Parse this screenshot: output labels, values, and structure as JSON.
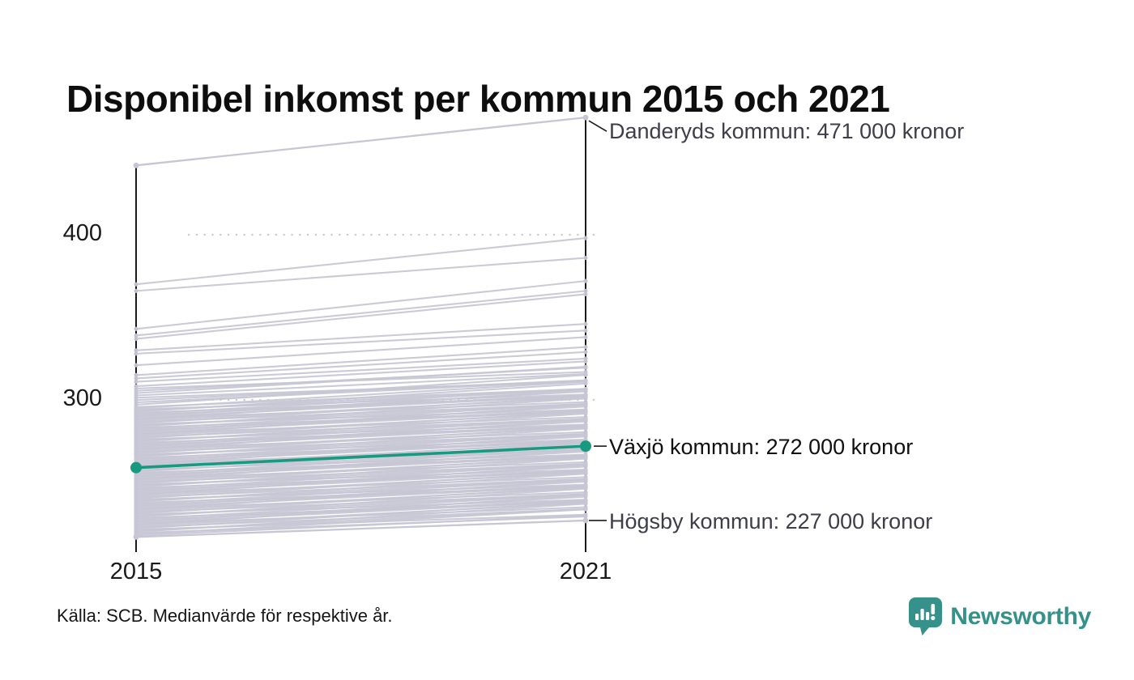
{
  "title": "Disponibel inkomst per kommun 2015 och 2021",
  "source_note": "Källa: SCB. Medianvärde för respektive år.",
  "branding": {
    "name": "Newsworthy",
    "logo_icon": "chart-speech-bubble-icon",
    "logo_color": "#35918a"
  },
  "colors": {
    "highlight": "#189a80",
    "line_gray": "#c7c6d4",
    "axis": "#1a1a1a",
    "gridline": "#cccccf",
    "leader": "#1a1a1a"
  },
  "chart_data": {
    "type": "line",
    "subtype": "slopegraph",
    "title": "Disponibel inkomst per kommun 2015 och 2021",
    "x": [
      "2015",
      "2021"
    ],
    "yticks": [
      300,
      400
    ],
    "ylim": [
      210,
      480
    ],
    "y_unit": "tusen kronor (medianvärde per kommun)",
    "grid": "dotted horizontal lines at yticks",
    "legend": "none",
    "series": [
      {
        "name": "Danderyds kommun",
        "values": [
          442,
          471
        ],
        "annotation": "Danderyds kommun: 471 000 kronor",
        "highlight": false
      },
      {
        "name": "Växjö kommun",
        "values": [
          259,
          272
        ],
        "annotation": "Växjö kommun: 272 000 kronor",
        "highlight": true
      },
      {
        "name": "Högsby kommun",
        "values": [
          217,
          227
        ],
        "annotation": "Högsby kommun: 227 000 kronor",
        "highlight": false
      }
    ],
    "background_outliers": [
      [
        370,
        398
      ],
      [
        366,
        386
      ],
      [
        343,
        372
      ],
      [
        339,
        366
      ],
      [
        337,
        364
      ],
      [
        330,
        346
      ],
      [
        328,
        342
      ],
      [
        321,
        338
      ],
      [
        315,
        332
      ],
      [
        313,
        329
      ],
      [
        311,
        325
      ]
    ],
    "background_lines": [
      [
        218,
        230
      ],
      [
        218.7,
        233.7
      ],
      [
        219.4,
        229.4
      ],
      [
        220.1,
        237.1
      ],
      [
        220.8,
        233.8
      ],
      [
        221.5,
        230.5
      ],
      [
        222.2,
        238.2
      ],
      [
        222.9,
        233.9
      ],
      [
        223.6,
        237.6
      ],
      [
        224.3,
        242.3
      ],
      [
        225,
        235
      ],
      [
        225.7,
        238.7
      ],
      [
        226.4,
        241.4
      ],
      [
        227.1,
        239.1
      ],
      [
        227.8,
        242.8
      ],
      [
        228.5,
        238.5
      ],
      [
        229.2,
        246.2
      ],
      [
        229.9,
        242.9
      ],
      [
        230.6,
        239.6
      ],
      [
        231.3,
        247.3
      ],
      [
        232,
        243
      ],
      [
        232.7,
        246.7
      ],
      [
        233.4,
        251.4
      ],
      [
        234.1,
        244.1
      ],
      [
        234.8,
        247.8
      ],
      [
        235.5,
        250.5
      ],
      [
        236.2,
        248.2
      ],
      [
        236.9,
        251.9
      ],
      [
        237.6,
        247.6
      ],
      [
        238.3,
        255.3
      ],
      [
        239,
        252
      ],
      [
        239.7,
        248.7
      ],
      [
        240.4,
        256.4
      ],
      [
        241.1,
        252.1
      ],
      [
        241.8,
        255.8
      ],
      [
        242.5,
        260.5
      ],
      [
        243.2,
        253.2
      ],
      [
        243.9,
        256.9
      ],
      [
        244.6,
        259.6
      ],
      [
        245.3,
        257.3
      ],
      [
        246,
        261
      ],
      [
        246.7,
        256.7
      ],
      [
        247.4,
        264.4
      ],
      [
        248.1,
        261.1
      ],
      [
        248.8,
        257.8
      ],
      [
        249.5,
        265.5
      ],
      [
        250.2,
        261.2
      ],
      [
        250.9,
        264.9
      ],
      [
        251.6,
        269.6
      ],
      [
        252.3,
        262.3
      ],
      [
        253,
        266
      ],
      [
        253.7,
        268.7
      ],
      [
        254.4,
        266.4
      ],
      [
        255.1,
        270.1
      ],
      [
        255.8,
        265.8
      ],
      [
        256.5,
        273.5
      ],
      [
        257.2,
        270.2
      ],
      [
        257.9,
        266.9
      ],
      [
        258.6,
        274.6
      ],
      [
        259.3,
        270.3
      ],
      [
        260,
        274
      ],
      [
        260.7,
        278.7
      ],
      [
        261.4,
        271.4
      ],
      [
        262.1,
        275.1
      ],
      [
        262.8,
        277.8
      ],
      [
        263.5,
        275.5
      ],
      [
        264.2,
        279.2
      ],
      [
        264.9,
        274.9
      ],
      [
        265.6,
        282.6
      ],
      [
        266.3,
        279.3
      ],
      [
        267,
        276
      ],
      [
        267.7,
        283.7
      ],
      [
        268.4,
        279.4
      ],
      [
        269.1,
        283.1
      ],
      [
        269.8,
        287.8
      ],
      [
        270.5,
        280.5
      ],
      [
        271.2,
        284.2
      ],
      [
        271.9,
        286.9
      ],
      [
        272.6,
        284.6
      ],
      [
        273.3,
        288.3
      ],
      [
        274,
        284
      ],
      [
        274.7,
        291.7
      ],
      [
        275.4,
        288.4
      ],
      [
        276.1,
        285.1
      ],
      [
        276.8,
        292.8
      ],
      [
        277.5,
        288.5
      ],
      [
        278.2,
        292.2
      ],
      [
        278.9,
        296.9
      ],
      [
        279.6,
        289.6
      ],
      [
        280.3,
        293.3
      ],
      [
        281,
        296
      ],
      [
        281.7,
        293.7
      ],
      [
        282.4,
        297.4
      ],
      [
        283.1,
        293.1
      ],
      [
        283.8,
        300.8
      ],
      [
        284.5,
        297.5
      ],
      [
        285.2,
        294.2
      ],
      [
        285.9,
        301.9
      ],
      [
        286.6,
        297.6
      ],
      [
        287.3,
        301.3
      ],
      [
        288,
        306
      ],
      [
        288.7,
        298.7
      ],
      [
        289.4,
        302.4
      ],
      [
        290.1,
        305.1
      ],
      [
        290.8,
        302.8
      ],
      [
        291.5,
        306.5
      ],
      [
        292.2,
        302.2
      ],
      [
        292.9,
        309.9
      ],
      [
        293.6,
        306.6
      ],
      [
        294.3,
        303.3
      ],
      [
        295,
        311
      ],
      [
        295.7,
        306.7
      ],
      [
        297.1,
        315.1
      ],
      [
        298.5,
        311.5
      ],
      [
        299.9,
        311.9
      ],
      [
        301.3,
        311.3
      ],
      [
        302.7,
        315.7
      ],
      [
        304.1,
        320.1
      ],
      [
        305.5,
        319.5
      ],
      [
        306.9,
        316.9
      ],
      [
        308.3,
        323.3
      ]
    ]
  }
}
